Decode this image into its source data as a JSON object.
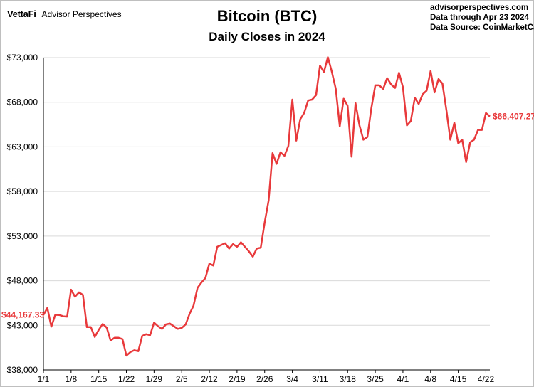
{
  "header": {
    "logo_brand": "VettaFi",
    "logo_text": "Advisor Perspectives",
    "source_lines": [
      "advisorperspectives.com",
      "Data through Apr 23 2024",
      "Data Source: CoinMarketCap"
    ]
  },
  "colors": {
    "line": "#e8393b",
    "grid": "#d9d9d9",
    "axis": "#000000"
  },
  "chart_data": {
    "type": "line",
    "title": "Bitcoin (BTC)",
    "subtitle": "Daily Closes in 2024",
    "xlabel": "",
    "ylabel": "",
    "ylim": [
      38000,
      73000
    ],
    "yticks": [
      38000,
      43000,
      48000,
      53000,
      58000,
      63000,
      68000,
      73000
    ],
    "ytick_labels": [
      "$38,000",
      "$43,000",
      "$48,000",
      "$53,000",
      "$58,000",
      "$63,000",
      "$68,000",
      "$73,000"
    ],
    "xlim": [
      1,
      114
    ],
    "xticks": [
      1,
      8,
      15,
      22,
      29,
      36,
      43,
      50,
      57,
      64,
      71,
      78,
      85,
      92,
      99,
      106,
      113
    ],
    "xtick_labels": [
      "1/1",
      "1/8",
      "1/15",
      "1/22",
      "1/29",
      "2/5",
      "2/12",
      "2/19",
      "2/26",
      "3/4",
      "3/11",
      "3/18",
      "3/25",
      "4/1",
      "4/8",
      "4/15",
      "4/22"
    ],
    "grid": true,
    "start_label": "$44,167.33",
    "end_label": "$66,407.27",
    "series": [
      {
        "values": [
          44167.33,
          44943,
          42848,
          44180,
          44163,
          44008,
          43975,
          47000,
          46200,
          46700,
          46400,
          42800,
          42800,
          41700,
          42500,
          43150,
          42750,
          41300,
          41600,
          41600,
          41450,
          39600,
          40000,
          40200,
          40100,
          41800,
          42000,
          41900,
          43300,
          42900,
          42600,
          43100,
          43200,
          42900,
          42600,
          42700,
          43100,
          44300,
          45200,
          47200,
          47800,
          48300,
          49900,
          49700,
          51800,
          52000,
          52200,
          51600,
          52100,
          51800,
          52300,
          51800,
          51300,
          50700,
          51600,
          51700,
          54500,
          57000,
          62300,
          61100,
          62400,
          62000,
          63100,
          68300,
          63700,
          66100,
          66800,
          68200,
          68300,
          68800,
          72100,
          71400,
          73050,
          71400,
          69500,
          65300,
          68400,
          67600,
          61900,
          67900,
          65400,
          63800,
          64100,
          67300,
          69900,
          69900,
          69500,
          70700,
          70000,
          69600,
          71300,
          69700,
          65400,
          65900,
          68500,
          67800,
          68900,
          69300,
          71500,
          69100,
          70600,
          70100,
          67100,
          63800,
          65700,
          63400,
          63800,
          61300,
          63500,
          63800,
          64900,
          64900,
          66800,
          66407.27
        ]
      }
    ]
  }
}
